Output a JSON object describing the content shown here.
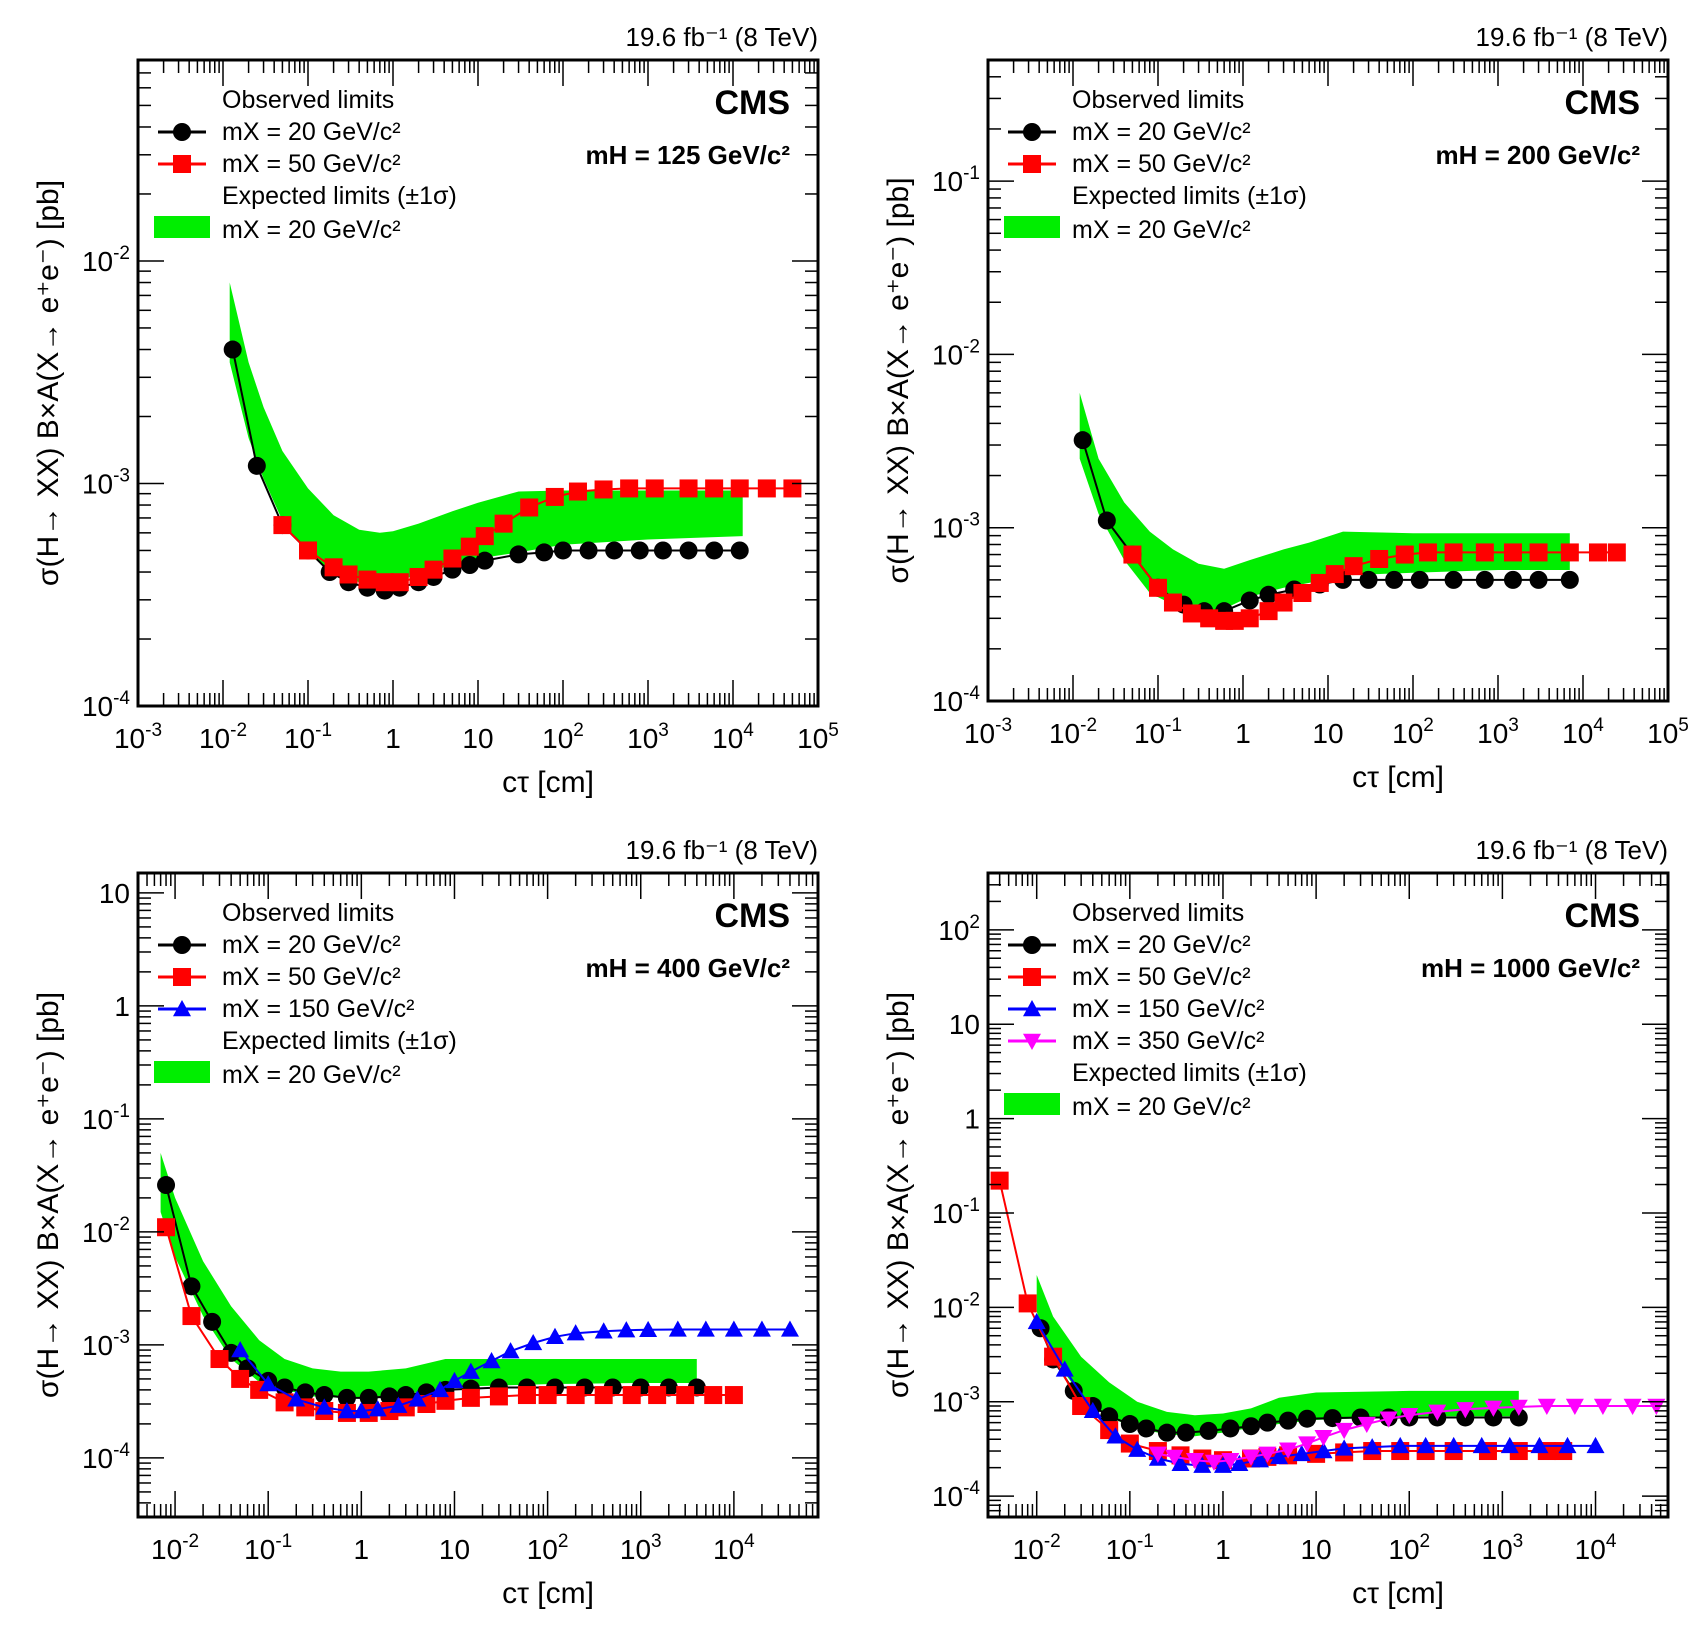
{
  "figure": {
    "axis_x_label": "cτ [cm]",
    "axis_y_label": "σ(H→ XX) B×A(X→ e⁺e⁻) [pb]",
    "legend_observed": "Observed limits",
    "legend_expected": "Expected limits (±1σ)",
    "experiment": "CMS",
    "lumi": "19.6 fb⁻¹ (8 TeV)"
  },
  "colors": {
    "band": "#00ee00",
    "mx20": "#000000",
    "mx50": "#ff0000",
    "mx150": "#0000ff",
    "mx350": "#ff00ff"
  },
  "chart_data": [
    {
      "type": "line",
      "title": "mH = 125 GeV/c²",
      "mh_label": "mH = 125 GeV/c²",
      "xlabel": "cτ [cm]",
      "ylabel": "σ(H→ XX) B×A(X→ e⁺e⁻) [pb]",
      "xscale": "log",
      "yscale": "log",
      "xlim": [
        0.001,
        100000
      ],
      "ylim": [
        0.0001,
        0.08
      ],
      "xticks": [
        "10⁻³",
        "10⁻²",
        "10⁻¹",
        "1",
        "10",
        "10²",
        "10³",
        "10⁴",
        "10⁵"
      ],
      "yticks": [
        "10⁻⁴",
        "10⁻³",
        "10⁻²"
      ],
      "legend": [
        "mX = 20 GeV/c²",
        "mX = 50 GeV/c²"
      ],
      "series": [
        {
          "name": "mX = 20 GeV/c²",
          "color": "mx20",
          "marker": "circle",
          "x": [
            0.013,
            0.025,
            0.05,
            0.1,
            0.18,
            0.3,
            0.5,
            0.8,
            1.2,
            2,
            3,
            5,
            8,
            12,
            30,
            60,
            100,
            200,
            400,
            800,
            1500,
            3000,
            6000,
            12000
          ],
          "y": [
            0.004,
            0.0012,
            0.00065,
            0.0005,
            0.0004,
            0.00036,
            0.00034,
            0.00033,
            0.00034,
            0.00036,
            0.00038,
            0.00041,
            0.00043,
            0.00045,
            0.00048,
            0.00049,
            0.0005,
            0.0005,
            0.0005,
            0.0005,
            0.0005,
            0.0005,
            0.0005,
            0.0005
          ]
        },
        {
          "name": "mX = 50 GeV/c²",
          "color": "mx50",
          "marker": "square",
          "x": [
            0.05,
            0.1,
            0.2,
            0.3,
            0.5,
            0.8,
            1.2,
            2,
            3,
            5,
            8,
            12,
            20,
            40,
            80,
            150,
            300,
            600,
            1200,
            3000,
            6000,
            12000,
            25000,
            50000
          ],
          "y": [
            0.00065,
            0.0005,
            0.00042,
            0.00039,
            0.00037,
            0.00036,
            0.00036,
            0.00038,
            0.00041,
            0.00046,
            0.00052,
            0.00058,
            0.00066,
            0.00078,
            0.00087,
            0.00092,
            0.00094,
            0.00095,
            0.00095,
            0.00095,
            0.00095,
            0.00095,
            0.00095,
            0.00095
          ]
        }
      ],
      "band": {
        "name": "Expected mX = 20 GeV/c²",
        "x": [
          0.012,
          0.02,
          0.03,
          0.05,
          0.1,
          0.2,
          0.4,
          0.7,
          1,
          2,
          5,
          10,
          30,
          100,
          1000,
          13000
        ],
        "lower": [
          0.0035,
          0.0016,
          0.00105,
          0.00068,
          0.00048,
          0.0004,
          0.00036,
          0.00035,
          0.00036,
          0.00039,
          0.00043,
          0.00046,
          0.00049,
          0.00053,
          0.00056,
          0.00058
        ],
        "upper": [
          0.008,
          0.0035,
          0.0022,
          0.0014,
          0.00095,
          0.00072,
          0.00062,
          0.0006,
          0.00061,
          0.00066,
          0.00075,
          0.00082,
          0.00092,
          0.00093,
          0.00093,
          0.00093
        ]
      }
    },
    {
      "type": "line",
      "title": "mH = 200 GeV/c²",
      "mh_label": "mH = 200 GeV/c²",
      "xlabel": "cτ [cm]",
      "ylabel": "σ(H→ XX) B×A(X→ e⁺e⁻) [pb]",
      "xscale": "log",
      "yscale": "log",
      "xlim": [
        0.001,
        100000
      ],
      "ylim": [
        0.0001,
        0.5
      ],
      "xticks": [
        "10⁻³",
        "10⁻²",
        "10⁻¹",
        "1",
        "10",
        "10²",
        "10³",
        "10⁴",
        "10⁵"
      ],
      "yticks": [
        "10⁻⁴",
        "10⁻³",
        "10⁻²",
        "10⁻¹"
      ],
      "legend": [
        "mX = 20 GeV/c²",
        "mX = 50 GeV/c²"
      ],
      "series": [
        {
          "name": "mX = 20 GeV/c²",
          "color": "mx20",
          "marker": "circle",
          "x": [
            0.013,
            0.025,
            0.05,
            0.1,
            0.2,
            0.35,
            0.6,
            1.2,
            2,
            4,
            8,
            15,
            30,
            60,
            120,
            300,
            700,
            1500,
            3000,
            7000
          ],
          "y": [
            0.0032,
            0.0011,
            0.0007,
            0.00045,
            0.00036,
            0.00033,
            0.00033,
            0.00038,
            0.00041,
            0.00044,
            0.00047,
            0.0005,
            0.0005,
            0.0005,
            0.0005,
            0.0005,
            0.0005,
            0.0005,
            0.0005,
            0.0005
          ]
        },
        {
          "name": "mX = 50 GeV/c²",
          "color": "mx50",
          "marker": "square",
          "x": [
            0.05,
            0.1,
            0.15,
            0.25,
            0.4,
            0.6,
            0.8,
            1.2,
            2,
            3,
            5,
            8,
            12,
            20,
            40,
            80,
            150,
            300,
            700,
            1500,
            3000,
            7000,
            15000,
            25000
          ],
          "y": [
            0.0007,
            0.00045,
            0.00037,
            0.00032,
            0.0003,
            0.00029,
            0.00029,
            0.0003,
            0.00033,
            0.00037,
            0.00042,
            0.00048,
            0.00054,
            0.0006,
            0.00066,
            0.0007,
            0.00072,
            0.00072,
            0.00072,
            0.00072,
            0.00072,
            0.00072,
            0.00072,
            0.00072
          ]
        }
      ],
      "band": {
        "name": "Expected mX = 20 GeV/c²",
        "x": [
          0.012,
          0.02,
          0.04,
          0.08,
          0.15,
          0.3,
          0.6,
          1.2,
          3,
          6,
          15,
          100,
          1000,
          7000
        ],
        "lower": [
          0.0025,
          0.0012,
          0.00065,
          0.00042,
          0.00036,
          0.00033,
          0.00034,
          0.0004,
          0.00045,
          0.00048,
          0.00053,
          0.00055,
          0.00057,
          0.00057
        ],
        "upper": [
          0.006,
          0.0025,
          0.0014,
          0.00095,
          0.00075,
          0.00062,
          0.00058,
          0.00065,
          0.00075,
          0.00082,
          0.00095,
          0.00093,
          0.00093,
          0.00093
        ]
      }
    },
    {
      "type": "line",
      "title": "mH = 400 GeV/c²",
      "mh_label": "mH = 400 GeV/c²",
      "xlabel": "cτ [cm]",
      "ylabel": "σ(H→ XX) B×A(X→ e⁺e⁻) [pb]",
      "xscale": "log",
      "yscale": "log",
      "xlim": [
        0.004,
        80000
      ],
      "ylim": [
        3e-05,
        15
      ],
      "xticks": [
        "10⁻²",
        "10⁻¹",
        "1",
        "10",
        "10²",
        "10³",
        "10⁴"
      ],
      "yticks": [
        "10⁻⁴",
        "10⁻³",
        "10⁻²",
        "10⁻¹",
        "1",
        "10"
      ],
      "legend": [
        "mX = 20 GeV/c²",
        "mX = 50 GeV/c²",
        "mX = 150 GeV/c²"
      ],
      "series": [
        {
          "name": "mX = 20 GeV/c²",
          "color": "mx20",
          "marker": "circle",
          "x": [
            0.008,
            0.015,
            0.025,
            0.04,
            0.06,
            0.1,
            0.15,
            0.25,
            0.4,
            0.7,
            1.2,
            2,
            3,
            5,
            8,
            15,
            30,
            60,
            120,
            250,
            500,
            1000,
            2000,
            4000
          ],
          "y": [
            0.026,
            0.0033,
            0.0016,
            0.00085,
            0.00062,
            0.00048,
            0.00042,
            0.00038,
            0.00036,
            0.00034,
            0.00034,
            0.00035,
            0.00036,
            0.00038,
            0.0004,
            0.00041,
            0.00042,
            0.00042,
            0.00042,
            0.00042,
            0.00042,
            0.00042,
            0.00042,
            0.00042
          ]
        },
        {
          "name": "mX = 50 GeV/c²",
          "color": "mx50",
          "marker": "square",
          "x": [
            0.008,
            0.015,
            0.03,
            0.05,
            0.08,
            0.15,
            0.25,
            0.4,
            0.7,
            1.2,
            2,
            3,
            5,
            8,
            15,
            30,
            60,
            100,
            200,
            400,
            800,
            1500,
            3000,
            6000,
            10000
          ],
          "y": [
            0.011,
            0.0018,
            0.00075,
            0.0005,
            0.0004,
            0.00031,
            0.00028,
            0.00026,
            0.00025,
            0.00025,
            0.00026,
            0.00028,
            0.0003,
            0.00032,
            0.00034,
            0.00035,
            0.00036,
            0.00036,
            0.00036,
            0.00036,
            0.00036,
            0.00036,
            0.00036,
            0.00036,
            0.00036
          ]
        },
        {
          "name": "mX = 150 GeV/c²",
          "color": "mx150",
          "marker": "triangle",
          "x": [
            0.05,
            0.1,
            0.2,
            0.4,
            0.7,
            1,
            1.5,
            2.5,
            4,
            7,
            10,
            15,
            25,
            40,
            70,
            120,
            200,
            400,
            700,
            1200,
            2500,
            5000,
            10000,
            20000,
            40000
          ],
          "y": [
            0.0009,
            0.00045,
            0.00033,
            0.00028,
            0.00026,
            0.00026,
            0.00027,
            0.00029,
            0.00033,
            0.0004,
            0.00048,
            0.00058,
            0.00072,
            0.00088,
            0.00104,
            0.00118,
            0.00127,
            0.00132,
            0.00135,
            0.00136,
            0.00137,
            0.00137,
            0.00137,
            0.00137,
            0.00137
          ]
        }
      ],
      "band": {
        "name": "Expected mX = 20 GeV/c²",
        "x": [
          0.007,
          0.01,
          0.02,
          0.04,
          0.08,
          0.15,
          0.3,
          0.6,
          1.2,
          3,
          8,
          15,
          100,
          1000,
          4000
        ],
        "lower": [
          0.015,
          0.006,
          0.0018,
          0.00075,
          0.00047,
          0.0004,
          0.00035,
          0.00034,
          0.00034,
          0.00037,
          0.00041,
          0.00043,
          0.00045,
          0.00046,
          0.00046
        ],
        "upper": [
          0.05,
          0.02,
          0.0055,
          0.0022,
          0.0011,
          0.00075,
          0.00062,
          0.00058,
          0.00058,
          0.00062,
          0.00075,
          0.00075,
          0.00075,
          0.00075,
          0.00075
        ]
      }
    },
    {
      "type": "line",
      "title": "mH = 1000 GeV/c²",
      "mh_label": "mH = 1000 GeV/c²",
      "xlabel": "cτ [cm]",
      "ylabel": "σ(H→ XX) B×A(X→ e⁺e⁻) [pb]",
      "xscale": "log",
      "yscale": "log",
      "xlim": [
        0.003,
        60000
      ],
      "ylim": [
        6e-05,
        400
      ],
      "xticks": [
        "10⁻²",
        "10⁻¹",
        "1",
        "10",
        "10²",
        "10³",
        "10⁴"
      ],
      "yticks": [
        "10⁻⁴",
        "10⁻³",
        "10⁻²",
        "10⁻¹",
        "1",
        "10",
        "10²"
      ],
      "legend": [
        "mX = 20 GeV/c²",
        "mX = 50 GeV/c²",
        "mX = 150 GeV/c²",
        "mX = 350 GeV/c²"
      ],
      "series": [
        {
          "name": "mX = 20 GeV/c²",
          "color": "mx20",
          "marker": "circle",
          "x": [
            0.011,
            0.015,
            0.025,
            0.04,
            0.06,
            0.1,
            0.15,
            0.25,
            0.4,
            0.7,
            1.2,
            2,
            3,
            5,
            8,
            15,
            30,
            60,
            100,
            200,
            400,
            800,
            1500
          ],
          "y": [
            0.006,
            0.0028,
            0.0013,
            0.0009,
            0.0007,
            0.00058,
            0.00052,
            0.00047,
            0.00047,
            0.00049,
            0.00052,
            0.00055,
            0.0006,
            0.00063,
            0.00066,
            0.00067,
            0.00068,
            0.00068,
            0.00068,
            0.00068,
            0.00068,
            0.00068,
            0.00068
          ]
        },
        {
          "name": "mX = 50 GeV/c²",
          "color": "mx50",
          "marker": "square",
          "x": [
            0.004,
            0.008,
            0.015,
            0.03,
            0.06,
            0.1,
            0.2,
            0.35,
            0.6,
            1,
            2,
            3,
            5,
            10,
            20,
            40,
            80,
            150,
            300,
            700,
            1500,
            3000,
            4500
          ],
          "y": [
            0.22,
            0.011,
            0.003,
            0.0009,
            0.0005,
            0.00036,
            0.0003,
            0.00027,
            0.00025,
            0.00024,
            0.00025,
            0.00026,
            0.00027,
            0.00028,
            0.00029,
            0.0003,
            0.0003,
            0.0003,
            0.0003,
            0.0003,
            0.0003,
            0.0003,
            0.0003
          ]
        },
        {
          "name": "mX = 150 GeV/c²",
          "color": "mx150",
          "marker": "triangle",
          "x": [
            0.01,
            0.02,
            0.04,
            0.07,
            0.12,
            0.2,
            0.35,
            0.6,
            1,
            1.5,
            2.5,
            4,
            7,
            12,
            20,
            40,
            80,
            150,
            300,
            600,
            1200,
            2500,
            5000,
            10000
          ],
          "y": [
            0.007,
            0.0022,
            0.0008,
            0.00043,
            0.00031,
            0.00025,
            0.00022,
            0.00021,
            0.00021,
            0.00022,
            0.00024,
            0.00026,
            0.00028,
            0.0003,
            0.00032,
            0.00033,
            0.00034,
            0.00034,
            0.00034,
            0.00034,
            0.00034,
            0.00034,
            0.00034,
            0.00034
          ]
        },
        {
          "name": "mX = 350 GeV/c²",
          "color": "mx350",
          "marker": "invtriangle",
          "x": [
            0.2,
            0.3,
            0.5,
            0.8,
            1.2,
            2,
            3,
            5,
            8,
            12,
            20,
            35,
            60,
            100,
            200,
            400,
            800,
            1500,
            3000,
            6000,
            12000,
            25000,
            45000
          ],
          "y": [
            0.00028,
            0.00026,
            0.00024,
            0.00023,
            0.00024,
            0.00026,
            0.00028,
            0.00031,
            0.00036,
            0.00042,
            0.0005,
            0.00058,
            0.00066,
            0.00072,
            0.00078,
            0.00083,
            0.00086,
            0.00088,
            0.0009,
            0.0009,
            0.0009,
            0.0009,
            0.0009
          ]
        }
      ],
      "band": {
        "name": "Expected mX = 20 GeV/c²",
        "x": [
          0.01,
          0.015,
          0.03,
          0.06,
          0.12,
          0.25,
          0.5,
          1,
          2,
          4,
          10,
          100,
          1500
        ],
        "lower": [
          0.009,
          0.003,
          0.00115,
          0.00068,
          0.00052,
          0.00045,
          0.00043,
          0.00047,
          0.00053,
          0.00058,
          0.00064,
          0.0007,
          0.0007
        ],
        "upper": [
          0.022,
          0.008,
          0.003,
          0.0016,
          0.001,
          0.00078,
          0.00072,
          0.00075,
          0.00085,
          0.0011,
          0.00125,
          0.0013,
          0.0013
        ]
      }
    }
  ]
}
